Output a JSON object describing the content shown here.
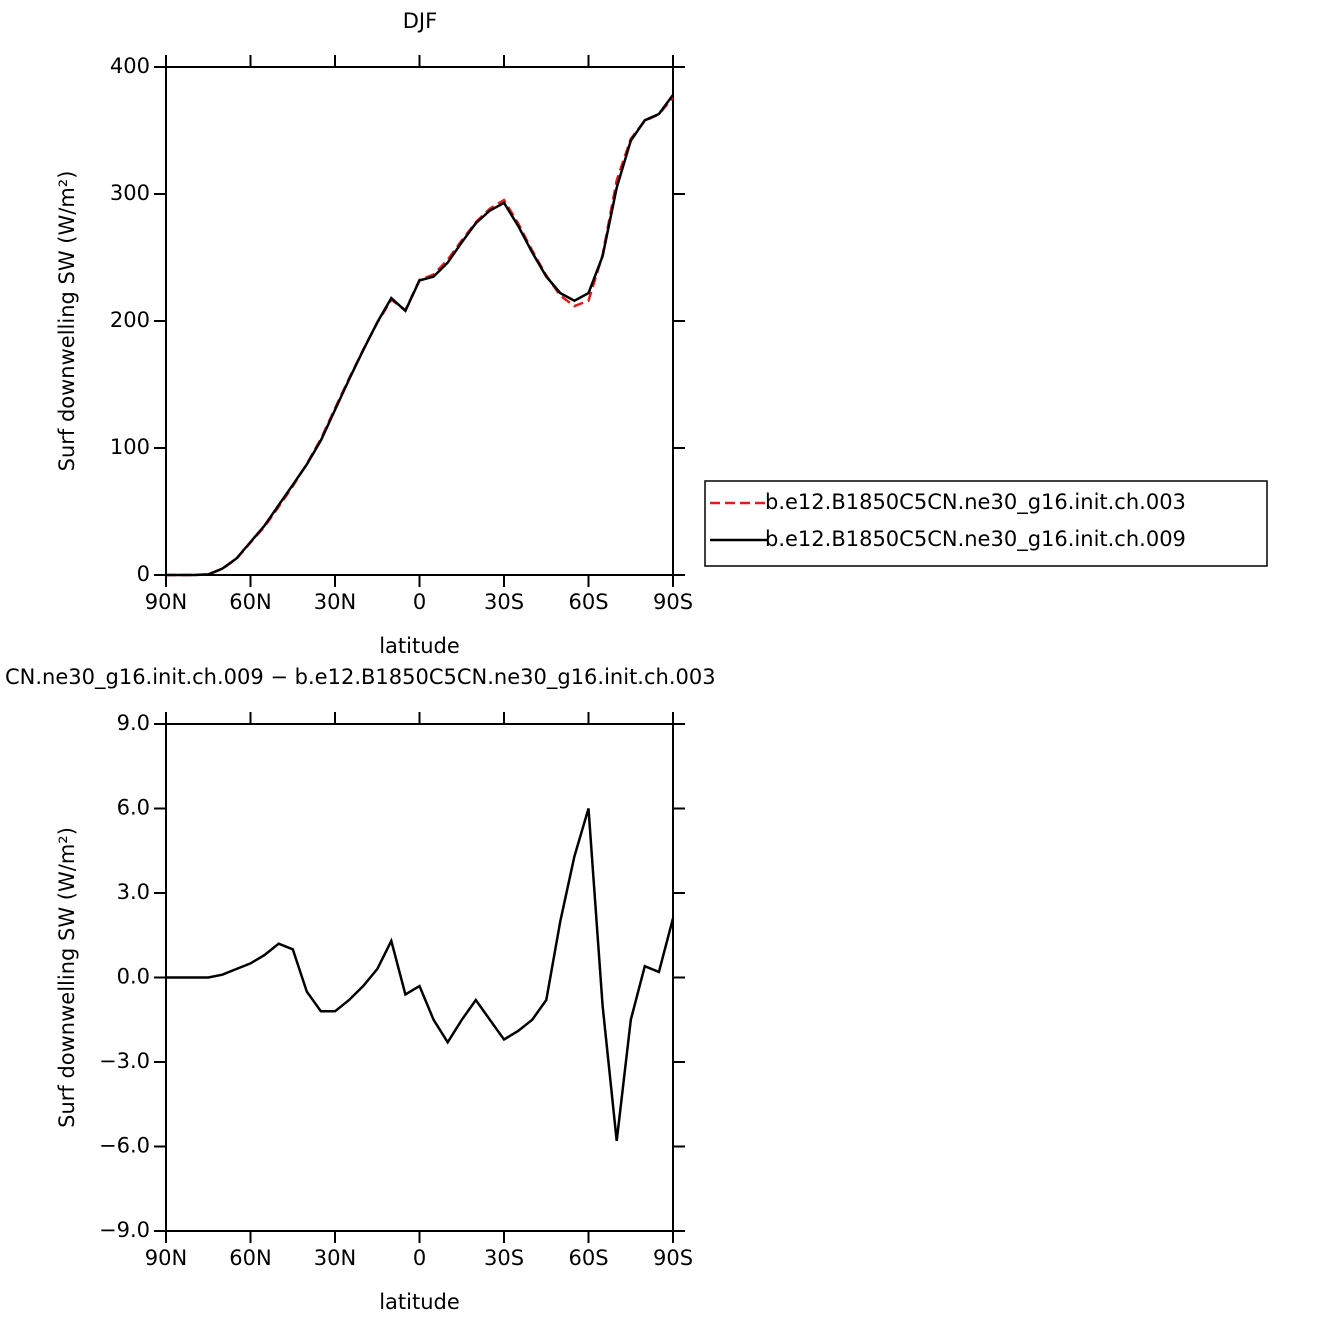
{
  "chart_data": [
    {
      "type": "line",
      "title": "DJF",
      "x_label": "latitude",
      "y_label": "Surf downwelling SW (W/m²)",
      "x": [
        90,
        85,
        80,
        75,
        70,
        65,
        60,
        55,
        50,
        45,
        40,
        35,
        30,
        25,
        20,
        15,
        10,
        5,
        0,
        -5,
        -10,
        -15,
        -20,
        -25,
        -30,
        -35,
        -40,
        -45,
        -50,
        -55,
        -60,
        -65,
        -70,
        -75,
        -80,
        -85,
        -90
      ],
      "xlim": [
        90,
        -90
      ],
      "xticks": [
        {
          "value": 90,
          "label": "90N"
        },
        {
          "value": 60,
          "label": "60N"
        },
        {
          "value": 30,
          "label": "30N"
        },
        0,
        {
          "value": -30,
          "label": "30S"
        },
        {
          "value": -60,
          "label": "60S"
        },
        {
          "value": -90,
          "label": "90S"
        }
      ],
      "ylim": [
        0,
        400
      ],
      "yticks": [
        0,
        100,
        200,
        300,
        400
      ],
      "legend": "right",
      "series": [
        {
          "name": "b.e12.B1850C5CN.ne30_g16.init.ch.003",
          "color": "#e41a1c",
          "dashed": true,
          "values": [
            0,
            0,
            0,
            0.5,
            4.9,
            12.7,
            25.5,
            38.2,
            53.8,
            70,
            87.5,
            107.2,
            131.2,
            154.8,
            177.3,
            198.7,
            216.7,
            208.6,
            232.3,
            236.5,
            248.3,
            263.5,
            277.8,
            288.5,
            295.2,
            276.9,
            255.5,
            235.8,
            220,
            211.7,
            216,
            252,
            310.8,
            343.5,
            357.6,
            362.8,
            375.9
          ]
        },
        {
          "name": "b.e12.B1850C5CN.ne30_g16.init.ch.009",
          "color": "#000000",
          "dashed": false,
          "values": [
            0,
            0,
            0,
            0.5,
            5,
            13,
            26,
            39,
            55,
            71,
            87,
            106,
            130,
            154,
            177,
            199,
            218,
            208,
            232,
            235,
            246,
            262,
            277,
            287,
            293,
            275,
            254,
            235,
            222,
            216,
            222,
            251,
            305,
            342,
            358,
            363,
            378
          ]
        }
      ]
    },
    {
      "type": "line",
      "title": "CN.ne30_g16.init.ch.009 − b.e12.B1850C5CN.ne30_g16.init.ch.003",
      "x_label": "latitude",
      "y_label": "Surf downwelling SW (W/m²)",
      "x": [
        90,
        85,
        80,
        75,
        70,
        65,
        60,
        55,
        50,
        45,
        40,
        35,
        30,
        25,
        20,
        15,
        10,
        5,
        0,
        -5,
        -10,
        -15,
        -20,
        -25,
        -30,
        -35,
        -40,
        -45,
        -50,
        -55,
        -60,
        -65,
        -70,
        -75,
        -80,
        -85,
        -90
      ],
      "xlim": [
        90,
        -90
      ],
      "xticks": [
        {
          "value": 90,
          "label": "90N"
        },
        {
          "value": 60,
          "label": "60N"
        },
        {
          "value": 30,
          "label": "30N"
        },
        0,
        {
          "value": -30,
          "label": "30S"
        },
        {
          "value": -60,
          "label": "60S"
        },
        {
          "value": -90,
          "label": "90S"
        }
      ],
      "ylim": [
        -9,
        9
      ],
      "yticks": [
        {
          "value": -9,
          "label": "−9.0"
        },
        {
          "value": -6,
          "label": "−6.0"
        },
        {
          "value": -3,
          "label": "−3.0"
        },
        {
          "value": 0,
          "label": "0.0"
        },
        {
          "value": 3,
          "label": "3.0"
        },
        {
          "value": 6,
          "label": "6.0"
        },
        {
          "value": 9,
          "label": "9.0"
        }
      ],
      "series": [
        {
          "color": "#000000",
          "dashed": false,
          "values": [
            0,
            0,
            0,
            0,
            0.1,
            0.3,
            0.5,
            0.8,
            1.2,
            1.0,
            -0.5,
            -1.2,
            -1.2,
            -0.8,
            -0.3,
            0.3,
            1.3,
            -0.6,
            -0.3,
            -1.5,
            -2.3,
            -1.5,
            -0.8,
            -1.5,
            -2.2,
            -1.9,
            -1.5,
            -0.8,
            2.0,
            4.3,
            6.0,
            -1.0,
            -5.8,
            -1.5,
            0.4,
            0.2,
            2.1
          ]
        }
      ]
    }
  ]
}
